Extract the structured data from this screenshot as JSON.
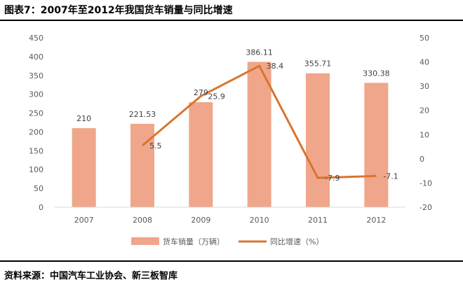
{
  "title": "图表7：2007年至2012年我国货车销量与同比增速",
  "source": "资料来源：中国汽车工业协会、新三板智库",
  "colors": {
    "bar": "#f0a68a",
    "line": "#d9742f",
    "axis": "#d9d9d9",
    "text": "#595959"
  },
  "chart_data": {
    "type": "bar",
    "categories": [
      "2007",
      "2008",
      "2009",
      "2010",
      "2011",
      "2012"
    ],
    "series": [
      {
        "name": "货车销量（万辆）",
        "type": "bar",
        "axis": "left",
        "values": [
          210,
          221.53,
          279,
          386.11,
          355.71,
          330.38
        ],
        "labels": [
          "210",
          "221.53",
          "279",
          "386.11",
          "355.71",
          "330.38"
        ]
      },
      {
        "name": "同比增速（%）",
        "type": "line",
        "axis": "right",
        "values": [
          null,
          5.5,
          25.9,
          38.4,
          -7.9,
          -7.1
        ],
        "labels": [
          "",
          "5.5",
          "25.9",
          "38.4",
          "-7.9",
          "-7.1"
        ]
      }
    ],
    "y_left": {
      "lim": [
        0,
        450
      ],
      "ticks": [
        "0",
        "50",
        "100",
        "150",
        "200",
        "250",
        "300",
        "350",
        "400",
        "450"
      ]
    },
    "y_right": {
      "lim": [
        -20,
        50
      ],
      "ticks": [
        "-20",
        "-10",
        "0",
        "10",
        "20",
        "30",
        "40",
        "50"
      ]
    },
    "grid": false,
    "legend": "bottom"
  }
}
